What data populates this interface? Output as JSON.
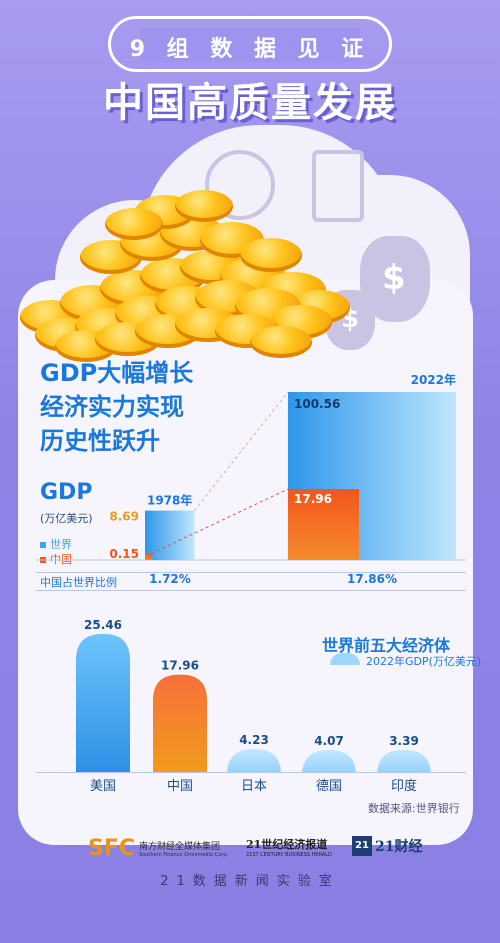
{
  "header": {
    "kicker": "9 组 数 据 见 证",
    "title": "中国高质量发展"
  },
  "section1": {
    "title_lines": [
      "GDP大幅增长",
      "经济实力实现",
      "历史性跃升"
    ],
    "gdp_label": "GDP",
    "gdp_unit": "(万亿美元)",
    "legend": [
      {
        "label": "世界",
        "color": "#3ba6ef"
      },
      {
        "label": "中国",
        "color": "#f2561c"
      }
    ],
    "share_label": "中国占世界比例",
    "colors": {
      "world": "#3ba6ef",
      "china": "#f2561c",
      "china_value": "#f29a1c"
    }
  },
  "section2": {
    "title": "世界前五大经济体",
    "subtitle": "2022年GDP(万亿美元)",
    "source": "数据来源:世界银行"
  },
  "footer": {
    "logos": [
      {
        "main": "SFC",
        "name": "南方财经全媒体集团",
        "sub": "Southern Finance Omnimedia Corp."
      },
      {
        "main": "21世纪经济报道",
        "sub": "21ST CENTURY BUSINESS HERALD"
      },
      {
        "main": "21财经",
        "badge": "21"
      }
    ],
    "lab": "21数据新闻实验室"
  },
  "chart_data": [
    {
      "type": "bar",
      "title": "GDP大幅增长 经济实力实现 历史性跃升",
      "ylabel": "GDP (万亿美元)",
      "categories": [
        "1978年",
        "2022年"
      ],
      "series": [
        {
          "name": "世界",
          "values": [
            8.69,
            100.56
          ]
        },
        {
          "name": "中国",
          "values": [
            0.15,
            17.96
          ]
        }
      ],
      "share": {
        "label": "中国占世界比例",
        "values": [
          "1.72%",
          "17.86%"
        ]
      },
      "legend": "left"
    },
    {
      "type": "bar",
      "title": "世界前五大经济体",
      "ylabel": "2022年GDP(万亿美元)",
      "categories": [
        "美国",
        "中国",
        "日本",
        "德国",
        "印度"
      ],
      "values": [
        25.46,
        17.96,
        4.23,
        4.07,
        3.39
      ],
      "colors": [
        "#3ba6ef",
        "#f2561c",
        "#9fd6fb",
        "#9fd6fb",
        "#9fd6fb"
      ],
      "source": "数据来源:世界银行"
    }
  ]
}
